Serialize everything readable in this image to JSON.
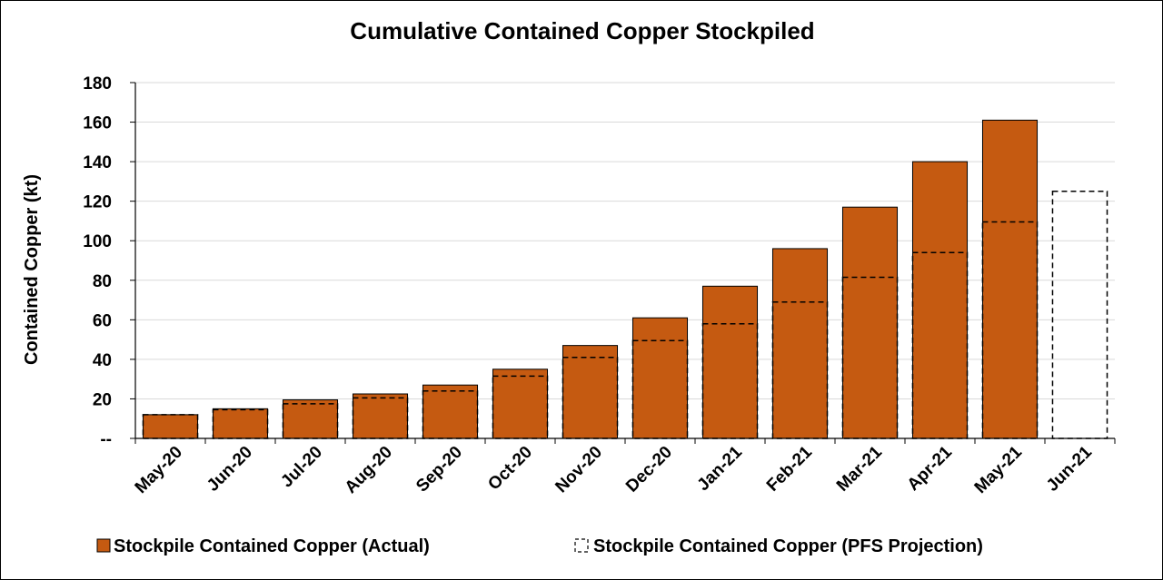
{
  "chart_data": {
    "type": "bar",
    "title": "Cumulative Contained Copper Stockpiled",
    "ylabel": "Contained Copper (kt)",
    "xlabel": "",
    "ylim": [
      0,
      180
    ],
    "yticks": [
      {
        "value": 0,
        "label": "--"
      },
      {
        "value": 20,
        "label": "20"
      },
      {
        "value": 40,
        "label": "40"
      },
      {
        "value": 60,
        "label": "60"
      },
      {
        "value": 80,
        "label": "80"
      },
      {
        "value": 100,
        "label": "100"
      },
      {
        "value": 120,
        "label": "120"
      },
      {
        "value": 140,
        "label": "140"
      },
      {
        "value": 160,
        "label": "160"
      },
      {
        "value": 180,
        "label": "180"
      }
    ],
    "grid": "horizontal",
    "legend_position": "bottom",
    "categories": [
      "May-20",
      "Jun-20",
      "Jul-20",
      "Aug-20",
      "Sep-20",
      "Oct-20",
      "Nov-20",
      "Dec-20",
      "Jan-21",
      "Feb-21",
      "Mar-21",
      "Apr-21",
      "May-21",
      "Jun-21"
    ],
    "series": [
      {
        "name": "Stockpile Contained Copper (Actual)",
        "style": "solid",
        "color": "#C55A11",
        "values": [
          12,
          15,
          19.5,
          22.5,
          27,
          35,
          47,
          61,
          77,
          96,
          117,
          140,
          161,
          null
        ]
      },
      {
        "name": "Stockpile Contained Copper (PFS Projection)",
        "style": "dashed-outline",
        "color": "#000000",
        "values": [
          12,
          14.5,
          17.5,
          20.5,
          24,
          31.5,
          41,
          49.5,
          58,
          69,
          81.5,
          94,
          109.5,
          125
        ]
      }
    ]
  }
}
